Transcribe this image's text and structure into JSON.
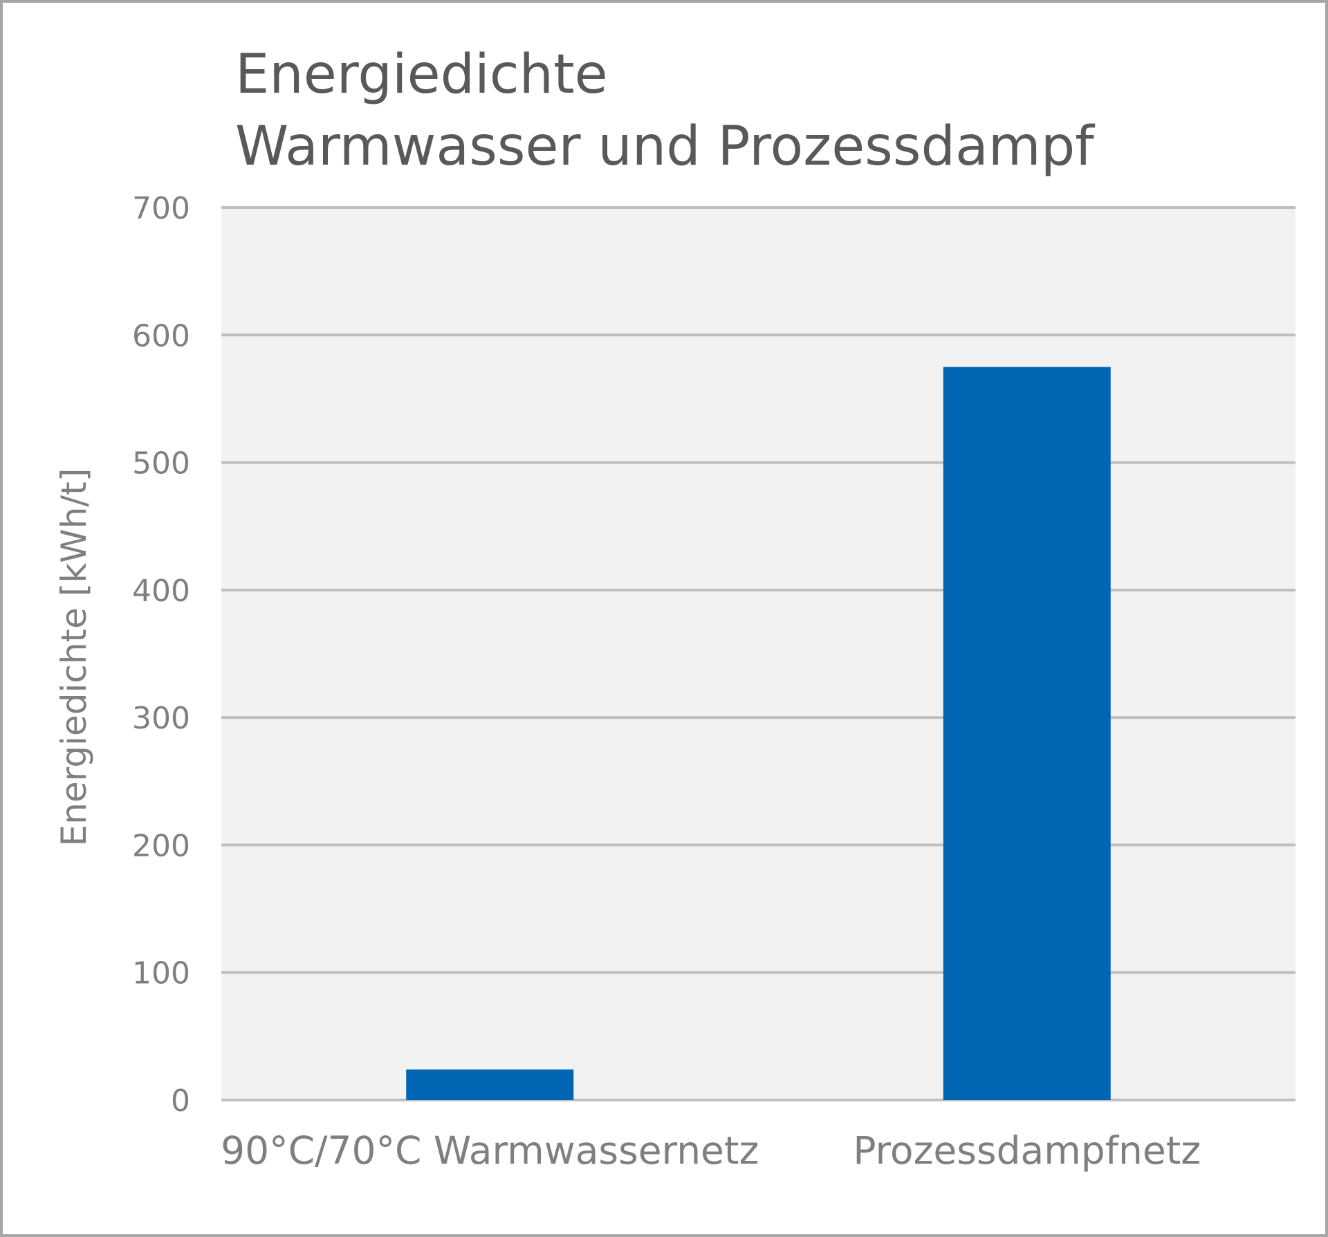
{
  "chart_data": {
    "type": "bar",
    "title": [
      "Energiedichte",
      "Warmwasser und Prozessdampf"
    ],
    "xlabel": "",
    "ylabel": "Energiedichte [kWh/t]",
    "categories": [
      "90°C/70°C Warmwassernetz",
      "Prozessdampfnetz"
    ],
    "values": [
      24,
      575
    ],
    "ylim": [
      0,
      700
    ],
    "yticks": [
      0,
      100,
      200,
      300,
      400,
      500,
      600,
      700
    ],
    "grid": true,
    "legend": "none",
    "colors": {
      "bar": "#0066b3",
      "plot_background": "#f2f2f2",
      "gridline": "#bfbfbf",
      "text": "#7f7f7f",
      "title": "#595959"
    }
  }
}
